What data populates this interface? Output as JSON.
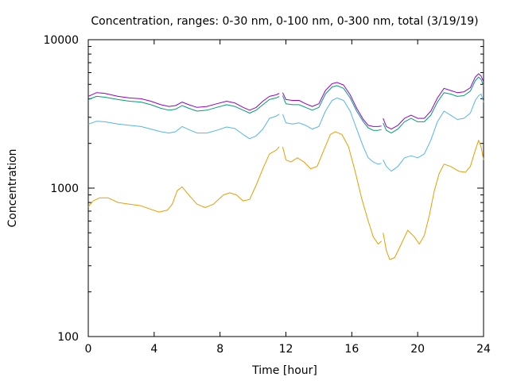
{
  "chart_data": {
    "type": "line",
    "title": "Concentration, ranges: 0-30 nm, 0-100 nm, 0-300 nm, total (3/19/19)",
    "xlabel": "Time [hour]",
    "ylabel": "Concentration",
    "xlim": [
      0,
      24
    ],
    "ylim": [
      100,
      10000
    ],
    "yscale": "log",
    "grid": false,
    "legend": "none",
    "x_ticks": [
      0,
      4,
      8,
      12,
      16,
      20,
      24
    ],
    "x_tick_labels": [
      "0",
      "4",
      "8",
      "12",
      "16",
      "20",
      "24"
    ],
    "y_ticks": [
      100,
      1000,
      10000
    ],
    "y_tick_labels": [
      "100",
      "1000",
      "10000"
    ],
    "series": [
      {
        "color": "#e69f00",
        "segments": [
          [
            [
              0,
              750
            ],
            [
              0.3,
              820
            ],
            [
              0.7,
              860
            ],
            [
              1.2,
              860
            ],
            [
              1.8,
              800
            ],
            [
              2.5,
              780
            ],
            [
              3.2,
              760
            ],
            [
              3.8,
              720
            ],
            [
              4.3,
              690
            ],
            [
              4.8,
              710
            ],
            [
              5.1,
              780
            ],
            [
              5.4,
              960
            ],
            [
              5.7,
              1020
            ],
            [
              6.1,
              900
            ],
            [
              6.6,
              780
            ],
            [
              7.1,
              740
            ],
            [
              7.6,
              780
            ],
            [
              8.2,
              900
            ],
            [
              8.6,
              930
            ],
            [
              9.0,
              900
            ],
            [
              9.4,
              820
            ],
            [
              9.8,
              840
            ],
            [
              10.2,
              1050
            ],
            [
              10.6,
              1350
            ],
            [
              11.0,
              1700
            ],
            [
              11.4,
              1800
            ],
            [
              11.6,
              1900
            ]
          ],
          [
            [
              11.8,
              1900
            ],
            [
              12.0,
              1550
            ],
            [
              12.3,
              1500
            ],
            [
              12.7,
              1600
            ],
            [
              13.1,
              1500
            ],
            [
              13.5,
              1350
            ],
            [
              13.9,
              1400
            ],
            [
              14.3,
              1800
            ],
            [
              14.7,
              2300
            ],
            [
              15.0,
              2400
            ],
            [
              15.4,
              2300
            ],
            [
              15.8,
              1900
            ],
            [
              16.2,
              1300
            ],
            [
              16.6,
              850
            ],
            [
              17.0,
              600
            ],
            [
              17.3,
              470
            ],
            [
              17.6,
              420
            ],
            [
              17.8,
              440
            ]
          ],
          [
            [
              17.9,
              500
            ],
            [
              18.1,
              380
            ],
            [
              18.3,
              330
            ],
            [
              18.6,
              340
            ],
            [
              19.0,
              420
            ],
            [
              19.4,
              520
            ],
            [
              19.8,
              470
            ],
            [
              20.1,
              420
            ],
            [
              20.4,
              480
            ],
            [
              20.7,
              650
            ],
            [
              21.0,
              950
            ],
            [
              21.3,
              1250
            ],
            [
              21.6,
              1450
            ],
            [
              22.0,
              1400
            ],
            [
              22.5,
              1300
            ],
            [
              22.9,
              1280
            ],
            [
              23.2,
              1400
            ],
            [
              23.5,
              1800
            ],
            [
              23.7,
              2100
            ],
            [
              23.85,
              1900
            ],
            [
              24.0,
              1550
            ]
          ]
        ]
      },
      {
        "color": "#56b4e9",
        "segments": [
          [
            [
              0,
              2700
            ],
            [
              0.5,
              2820
            ],
            [
              1.0,
              2800
            ],
            [
              1.8,
              2700
            ],
            [
              2.5,
              2650
            ],
            [
              3.2,
              2600
            ],
            [
              3.8,
              2500
            ],
            [
              4.4,
              2400
            ],
            [
              4.9,
              2350
            ],
            [
              5.3,
              2400
            ],
            [
              5.7,
              2600
            ],
            [
              6.1,
              2480
            ],
            [
              6.6,
              2350
            ],
            [
              7.2,
              2350
            ],
            [
              7.8,
              2450
            ],
            [
              8.4,
              2580
            ],
            [
              8.9,
              2520
            ],
            [
              9.4,
              2300
            ],
            [
              9.8,
              2150
            ],
            [
              10.2,
              2250
            ],
            [
              10.6,
              2500
            ],
            [
              11.0,
              2950
            ],
            [
              11.4,
              3050
            ],
            [
              11.6,
              3150
            ]
          ],
          [
            [
              11.8,
              3150
            ],
            [
              12.0,
              2750
            ],
            [
              12.4,
              2700
            ],
            [
              12.8,
              2750
            ],
            [
              13.2,
              2650
            ],
            [
              13.6,
              2500
            ],
            [
              14.0,
              2600
            ],
            [
              14.4,
              3300
            ],
            [
              14.8,
              3900
            ],
            [
              15.1,
              4050
            ],
            [
              15.5,
              3900
            ],
            [
              15.9,
              3300
            ],
            [
              16.3,
              2500
            ],
            [
              16.7,
              1900
            ],
            [
              17.0,
              1600
            ],
            [
              17.3,
              1500
            ],
            [
              17.6,
              1450
            ],
            [
              17.8,
              1470
            ]
          ],
          [
            [
              17.9,
              1550
            ],
            [
              18.1,
              1400
            ],
            [
              18.4,
              1300
            ],
            [
              18.8,
              1400
            ],
            [
              19.2,
              1600
            ],
            [
              19.6,
              1650
            ],
            [
              20.0,
              1600
            ],
            [
              20.4,
              1700
            ],
            [
              20.8,
              2100
            ],
            [
              21.2,
              2800
            ],
            [
              21.6,
              3300
            ],
            [
              22.0,
              3100
            ],
            [
              22.4,
              2900
            ],
            [
              22.8,
              2950
            ],
            [
              23.2,
              3200
            ],
            [
              23.5,
              3900
            ],
            [
              23.7,
              4200
            ],
            [
              23.85,
              4300
            ],
            [
              24.0,
              3800
            ]
          ]
        ]
      },
      {
        "color": "#009e73",
        "segments": [
          [
            [
              0,
              3950
            ],
            [
              0.5,
              4150
            ],
            [
              1.0,
              4100
            ],
            [
              1.8,
              3950
            ],
            [
              2.5,
              3850
            ],
            [
              3.2,
              3800
            ],
            [
              3.8,
              3650
            ],
            [
              4.4,
              3450
            ],
            [
              4.9,
              3350
            ],
            [
              5.3,
              3400
            ],
            [
              5.7,
              3600
            ],
            [
              6.1,
              3450
            ],
            [
              6.6,
              3300
            ],
            [
              7.2,
              3350
            ],
            [
              7.8,
              3500
            ],
            [
              8.4,
              3650
            ],
            [
              8.9,
              3550
            ],
            [
              9.4,
              3350
            ],
            [
              9.8,
              3200
            ],
            [
              10.2,
              3350
            ],
            [
              10.6,
              3650
            ],
            [
              11.0,
              3950
            ],
            [
              11.4,
              4050
            ],
            [
              11.6,
              4150
            ]
          ],
          [
            [
              11.8,
              4200
            ],
            [
              12.0,
              3700
            ],
            [
              12.4,
              3650
            ],
            [
              12.8,
              3650
            ],
            [
              13.2,
              3500
            ],
            [
              13.6,
              3350
            ],
            [
              14.0,
              3500
            ],
            [
              14.4,
              4300
            ],
            [
              14.8,
              4800
            ],
            [
              15.1,
              4900
            ],
            [
              15.5,
              4700
            ],
            [
              15.9,
              4050
            ],
            [
              16.3,
              3300
            ],
            [
              16.7,
              2800
            ],
            [
              17.0,
              2550
            ],
            [
              17.3,
              2450
            ],
            [
              17.6,
              2450
            ],
            [
              17.8,
              2480
            ]
          ],
          [
            [
              17.9,
              2750
            ],
            [
              18.1,
              2450
            ],
            [
              18.4,
              2350
            ],
            [
              18.8,
              2500
            ],
            [
              19.2,
              2800
            ],
            [
              19.6,
              2950
            ],
            [
              20.0,
              2800
            ],
            [
              20.4,
              2800
            ],
            [
              20.8,
              3100
            ],
            [
              21.2,
              3800
            ],
            [
              21.6,
              4400
            ],
            [
              22.0,
              4300
            ],
            [
              22.4,
              4150
            ],
            [
              22.8,
              4200
            ],
            [
              23.2,
              4500
            ],
            [
              23.5,
              5300
            ],
            [
              23.7,
              5600
            ],
            [
              23.85,
              5400
            ],
            [
              24.0,
              4900
            ]
          ]
        ]
      },
      {
        "color": "#9400d3",
        "segments": [
          [
            [
              0,
              4150
            ],
            [
              0.5,
              4400
            ],
            [
              1.0,
              4350
            ],
            [
              1.8,
              4150
            ],
            [
              2.5,
              4050
            ],
            [
              3.2,
              4000
            ],
            [
              3.8,
              3850
            ],
            [
              4.4,
              3650
            ],
            [
              4.9,
              3550
            ],
            [
              5.3,
              3600
            ],
            [
              5.7,
              3800
            ],
            [
              6.1,
              3650
            ],
            [
              6.6,
              3500
            ],
            [
              7.2,
              3550
            ],
            [
              7.8,
              3700
            ],
            [
              8.4,
              3850
            ],
            [
              8.9,
              3750
            ],
            [
              9.4,
              3500
            ],
            [
              9.8,
              3350
            ],
            [
              10.2,
              3500
            ],
            [
              10.6,
              3850
            ],
            [
              11.0,
              4150
            ],
            [
              11.4,
              4250
            ],
            [
              11.6,
              4350
            ]
          ],
          [
            [
              11.8,
              4400
            ],
            [
              12.0,
              3950
            ],
            [
              12.4,
              3900
            ],
            [
              12.8,
              3900
            ],
            [
              13.2,
              3700
            ],
            [
              13.6,
              3550
            ],
            [
              14.0,
              3700
            ],
            [
              14.4,
              4550
            ],
            [
              14.8,
              5050
            ],
            [
              15.1,
              5150
            ],
            [
              15.5,
              4950
            ],
            [
              15.9,
              4250
            ],
            [
              16.3,
              3450
            ],
            [
              16.7,
              2900
            ],
            [
              17.0,
              2650
            ],
            [
              17.3,
              2600
            ],
            [
              17.6,
              2600
            ],
            [
              17.8,
              2620
            ]
          ],
          [
            [
              17.9,
              2950
            ],
            [
              18.1,
              2600
            ],
            [
              18.4,
              2500
            ],
            [
              18.8,
              2650
            ],
            [
              19.2,
              2950
            ],
            [
              19.6,
              3100
            ],
            [
              20.0,
              2950
            ],
            [
              20.4,
              2950
            ],
            [
              20.8,
              3300
            ],
            [
              21.2,
              4050
            ],
            [
              21.6,
              4700
            ],
            [
              22.0,
              4550
            ],
            [
              22.4,
              4400
            ],
            [
              22.8,
              4450
            ],
            [
              23.2,
              4750
            ],
            [
              23.5,
              5600
            ],
            [
              23.7,
              5900
            ],
            [
              23.85,
              5700
            ],
            [
              24.0,
              5200
            ]
          ]
        ]
      }
    ]
  }
}
